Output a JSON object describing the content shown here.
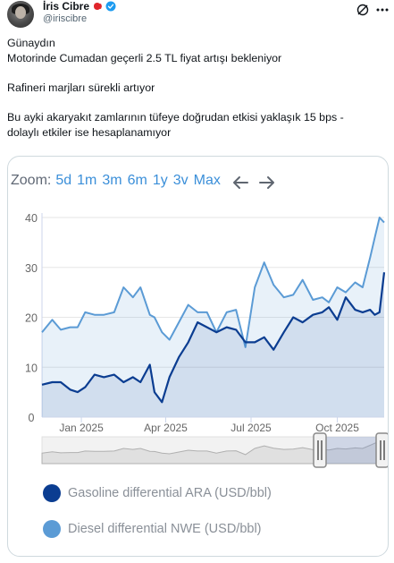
{
  "user": {
    "display_name": "İris Cibre",
    "handle": "@iriscibre"
  },
  "icons": {
    "avatar": "avatar-photo",
    "flag": "turkish-flag-icon",
    "verified": "verified-badge-icon",
    "grok": "grok-icon",
    "more": "more-dots-icon"
  },
  "colors": {
    "verified": "#1d9bf0",
    "series_gasoline": "#0b3d91",
    "series_diesel": "#5b9bd5"
  },
  "tweet": {
    "line1": "Günaydın",
    "line2": "Motorinde Cumadan geçerli 2.5 TL fiyat artışı bekleniyor",
    "line3": "Rafineri marjları sürekli artıyor",
    "line4": "Bu ayki akaryakıt zamlarının tüfeye doğrudan etkisi yaklaşık 15 bps -",
    "line5": "dolaylı etkiler ise hesaplanamıyor"
  },
  "zoom": {
    "label": "Zoom:",
    "options": [
      "5d",
      "1m",
      "3m",
      "6m",
      "1y",
      "3v",
      "Max"
    ]
  },
  "chart_data": {
    "type": "area",
    "ylim": [
      0,
      40
    ],
    "yticks": [
      "0",
      "10",
      "20",
      "30",
      "40"
    ],
    "xticks": [
      "Jan 2025",
      "Apr 2025",
      "Jul 2025",
      "Oct 2025"
    ],
    "xtick_dates": [
      "2025-01-01",
      "2025-04-01",
      "2025-07-01",
      "2025-10-01"
    ],
    "grid": true,
    "legend_position": "bottom",
    "series": [
      {
        "name": "Gasoline differential ARA (USD/bbl)",
        "dates": [
          "2024-11-20",
          "2024-12-01",
          "2024-12-10",
          "2024-12-20",
          "2024-12-28",
          "2025-01-05",
          "2025-01-15",
          "2025-01-25",
          "2025-02-05",
          "2025-02-15",
          "2025-02-25",
          "2025-03-05",
          "2025-03-15",
          "2025-03-20",
          "2025-03-28",
          "2025-04-05",
          "2025-04-15",
          "2025-04-25",
          "2025-05-05",
          "2025-05-15",
          "2025-05-25",
          "2025-06-05",
          "2025-06-15",
          "2025-06-25",
          "2025-07-05",
          "2025-07-15",
          "2025-07-25",
          "2025-08-05",
          "2025-08-15",
          "2025-08-25",
          "2025-09-05",
          "2025-09-15",
          "2025-09-22",
          "2025-10-01",
          "2025-10-10",
          "2025-10-20",
          "2025-10-28",
          "2025-11-05",
          "2025-11-10",
          "2025-11-15",
          "2025-11-20"
        ],
        "values": [
          6.5,
          7.0,
          7.0,
          5.5,
          5.0,
          6.0,
          8.5,
          8.0,
          8.5,
          7.0,
          8.0,
          7.0,
          10.5,
          5.0,
          3.0,
          8.0,
          12.0,
          15.0,
          19.0,
          18.0,
          17.0,
          18.0,
          17.5,
          15.0,
          15.0,
          16.0,
          13.5,
          17.0,
          20.0,
          19.0,
          20.5,
          21.0,
          22.0,
          19.5,
          24.0,
          21.5,
          21.0,
          21.5,
          20.5,
          21.0,
          29.0
        ]
      },
      {
        "name": "Diesel differential NWE (USD/bbl)",
        "dates": [
          "2024-11-20",
          "2024-12-01",
          "2024-12-10",
          "2024-12-20",
          "2024-12-28",
          "2025-01-05",
          "2025-01-15",
          "2025-01-25",
          "2025-02-05",
          "2025-02-15",
          "2025-02-25",
          "2025-03-05",
          "2025-03-15",
          "2025-03-20",
          "2025-03-28",
          "2025-04-05",
          "2025-04-15",
          "2025-04-25",
          "2025-05-05",
          "2025-05-15",
          "2025-05-25",
          "2025-06-05",
          "2025-06-15",
          "2025-06-25",
          "2025-07-05",
          "2025-07-15",
          "2025-07-25",
          "2025-08-05",
          "2025-08-15",
          "2025-08-25",
          "2025-09-05",
          "2025-09-15",
          "2025-09-22",
          "2025-10-01",
          "2025-10-10",
          "2025-10-20",
          "2025-10-28",
          "2025-11-05",
          "2025-11-10",
          "2025-11-15",
          "2025-11-20"
        ],
        "values": [
          17.0,
          19.5,
          17.5,
          18.0,
          18.0,
          21.0,
          20.5,
          20.5,
          21.0,
          26.0,
          24.0,
          26.0,
          20.5,
          20.0,
          17.0,
          15.5,
          19.0,
          22.5,
          21.0,
          21.0,
          17.0,
          21.0,
          21.5,
          14.0,
          26.0,
          31.0,
          26.5,
          24.0,
          24.5,
          27.5,
          23.5,
          24.0,
          23.0,
          26.0,
          25.0,
          27.0,
          26.0,
          32.0,
          36.0,
          40.0,
          39.0
        ]
      }
    ],
    "navigator": {
      "selected_range": [
        "2024-11-20",
        "2025-11-20"
      ]
    }
  }
}
